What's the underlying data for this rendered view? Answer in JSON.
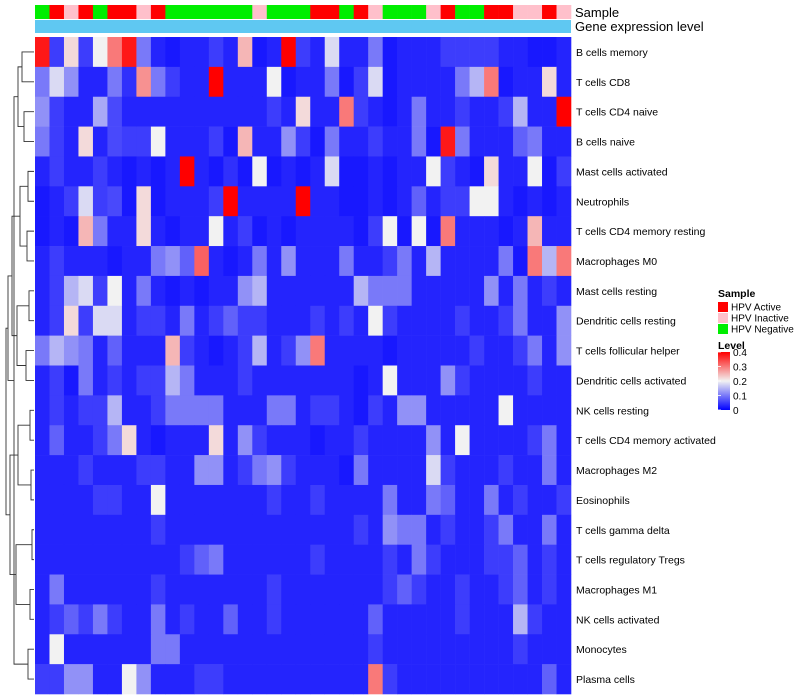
{
  "chart_data": {
    "type": "heatmap",
    "annotation_tracks": [
      "Sample",
      "Gene expression level"
    ],
    "rows": [
      "B cells memory",
      "T cells CD8",
      "T cells CD4 naive",
      "B cells naive",
      "Mast cells activated",
      "Neutrophils",
      "T cells CD4 memory resting",
      "Macrophages M0",
      "Mast cells resting",
      "Dendritic cells resting",
      "T cells follicular helper",
      "Dendritic cells activated",
      "NK cells resting",
      "T cells CD4 memory activated",
      "Macrophages M2",
      "Eosinophils",
      "T cells gamma delta",
      "T cells regulatory  Tregs",
      "Macrophages M1",
      "NK cells activated",
      "Monocytes",
      "Plasma cells"
    ],
    "sample_groups": [
      "HPV Negative",
      "HPV Active",
      "HPV Inactive",
      "HPV Active",
      "HPV Negative",
      "HPV Active",
      "HPV Active",
      "HPV Inactive",
      "HPV Active",
      "HPV Negative",
      "HPV Negative",
      "HPV Negative",
      "HPV Negative",
      "HPV Negative",
      "HPV Negative",
      "HPV Inactive",
      "HPV Negative",
      "HPV Negative",
      "HPV Negative",
      "HPV Active",
      "HPV Active",
      "HPV Negative",
      "HPV Active",
      "HPV Inactive",
      "HPV Negative",
      "HPV Negative",
      "HPV Negative",
      "HPV Inactive",
      "HPV Active",
      "HPV Negative",
      "HPV Negative",
      "HPV Active",
      "HPV Active",
      "HPV Inactive",
      "HPV Inactive",
      "HPV Active",
      "HPV Inactive"
    ],
    "values": [
      [
        0.38,
        0.05,
        0.22,
        0.05,
        0.2,
        0.3,
        0.38,
        0.1,
        0.03,
        0.02,
        0.03,
        0.03,
        0.05,
        0.03,
        0.25,
        0.02,
        0.03,
        0.4,
        0.05,
        0.03,
        0.18,
        0.03,
        0.03,
        0.1,
        0.02,
        0.03,
        0.03,
        0.03,
        0.05,
        0.05,
        0.05,
        0.05,
        0.03,
        0.03,
        0.02,
        0.02,
        0.03
      ],
      [
        0.1,
        0.18,
        0.12,
        0.03,
        0.03,
        0.1,
        0.04,
        0.28,
        0.1,
        0.05,
        0.03,
        0.03,
        0.4,
        0.03,
        0.03,
        0.03,
        0.2,
        0.02,
        0.03,
        0.03,
        0.1,
        0.02,
        0.05,
        0.18,
        0.02,
        0.03,
        0.03,
        0.03,
        0.03,
        0.1,
        0.15,
        0.3,
        0.02,
        0.03,
        0.03,
        0.22,
        0.03
      ],
      [
        0.12,
        0.05,
        0.03,
        0.03,
        0.14,
        0.06,
        0.03,
        0.03,
        0.03,
        0.03,
        0.03,
        0.03,
        0.03,
        0.03,
        0.03,
        0.03,
        0.05,
        0.03,
        0.22,
        0.03,
        0.03,
        0.3,
        0.05,
        0.03,
        0.02,
        0.03,
        0.1,
        0.03,
        0.03,
        0.05,
        0.03,
        0.03,
        0.05,
        0.15,
        0.03,
        0.03,
        0.4
      ],
      [
        0.1,
        0.05,
        0.03,
        0.22,
        0.03,
        0.06,
        0.05,
        0.05,
        0.2,
        0.03,
        0.03,
        0.03,
        0.05,
        0.02,
        0.25,
        0.03,
        0.03,
        0.12,
        0.05,
        0.02,
        0.1,
        0.03,
        0.03,
        0.05,
        0.03,
        0.03,
        0.1,
        0.02,
        0.38,
        0.1,
        0.03,
        0.03,
        0.03,
        0.08,
        0.1,
        0.03,
        0.03
      ],
      [
        0.03,
        0.05,
        0.03,
        0.03,
        0.05,
        0.03,
        0.02,
        0.03,
        0.02,
        0.03,
        0.4,
        0.03,
        0.02,
        0.04,
        0.02,
        0.2,
        0.02,
        0.03,
        0.02,
        0.03,
        0.18,
        0.02,
        0.02,
        0.03,
        0.02,
        0.03,
        0.03,
        0.2,
        0.05,
        0.03,
        0.02,
        0.22,
        0.03,
        0.03,
        0.2,
        0.02,
        0.05
      ],
      [
        0.02,
        0.03,
        0.05,
        0.18,
        0.05,
        0.06,
        0.02,
        0.22,
        0.02,
        0.03,
        0.03,
        0.03,
        0.05,
        0.4,
        0.03,
        0.03,
        0.03,
        0.03,
        0.4,
        0.03,
        0.03,
        0.02,
        0.02,
        0.03,
        0.02,
        0.03,
        0.08,
        0.03,
        0.05,
        0.05,
        0.2,
        0.2,
        0.03,
        0.02,
        0.03,
        0.02,
        0.03
      ],
      [
        0.02,
        0.03,
        0.02,
        0.25,
        0.1,
        0.03,
        0.03,
        0.22,
        0.03,
        0.02,
        0.03,
        0.03,
        0.2,
        0.03,
        0.05,
        0.02,
        0.03,
        0.02,
        0.03,
        0.03,
        0.03,
        0.03,
        0.02,
        0.05,
        0.2,
        0.02,
        0.2,
        0.02,
        0.3,
        0.03,
        0.03,
        0.03,
        0.02,
        0.03,
        0.25,
        0.03,
        0.03
      ],
      [
        0.03,
        0.05,
        0.03,
        0.03,
        0.03,
        0.02,
        0.03,
        0.03,
        0.1,
        0.12,
        0.08,
        0.32,
        0.03,
        0.02,
        0.03,
        0.1,
        0.03,
        0.12,
        0.03,
        0.03,
        0.03,
        0.1,
        0.03,
        0.03,
        0.05,
        0.1,
        0.03,
        0.15,
        0.03,
        0.03,
        0.03,
        0.03,
        0.1,
        0.02,
        0.3,
        0.15,
        0.3
      ],
      [
        0.03,
        0.05,
        0.15,
        0.18,
        0.05,
        0.2,
        0.03,
        0.1,
        0.03,
        0.02,
        0.03,
        0.02,
        0.03,
        0.03,
        0.12,
        0.15,
        0.03,
        0.03,
        0.03,
        0.03,
        0.03,
        0.03,
        0.15,
        0.1,
        0.1,
        0.1,
        0.03,
        0.03,
        0.03,
        0.03,
        0.03,
        0.12,
        0.03,
        0.1,
        0.03,
        0.05,
        0.03
      ],
      [
        0.03,
        0.05,
        0.22,
        0.05,
        0.18,
        0.18,
        0.03,
        0.05,
        0.05,
        0.03,
        0.1,
        0.03,
        0.05,
        0.08,
        0.05,
        0.05,
        0.03,
        0.03,
        0.03,
        0.05,
        0.03,
        0.05,
        0.03,
        0.2,
        0.05,
        0.03,
        0.03,
        0.03,
        0.03,
        0.05,
        0.03,
        0.03,
        0.05,
        0.1,
        0.03,
        0.03,
        0.12
      ],
      [
        0.1,
        0.15,
        0.12,
        0.1,
        0.03,
        0.08,
        0.03,
        0.03,
        0.03,
        0.25,
        0.05,
        0.03,
        0.02,
        0.03,
        0.05,
        0.15,
        0.03,
        0.05,
        0.12,
        0.3,
        0.03,
        0.03,
        0.03,
        0.03,
        0.02,
        0.03,
        0.03,
        0.03,
        0.03,
        0.03,
        0.05,
        0.03,
        0.03,
        0.05,
        0.1,
        0.03,
        0.12
      ],
      [
        0.03,
        0.05,
        0.02,
        0.1,
        0.03,
        0.05,
        0.03,
        0.05,
        0.05,
        0.15,
        0.1,
        0.03,
        0.03,
        0.03,
        0.05,
        0.03,
        0.03,
        0.03,
        0.03,
        0.03,
        0.03,
        0.03,
        0.02,
        0.03,
        0.2,
        0.03,
        0.03,
        0.03,
        0.12,
        0.05,
        0.03,
        0.03,
        0.03,
        0.03,
        0.05,
        0.03,
        0.03
      ],
      [
        0.03,
        0.05,
        0.03,
        0.05,
        0.05,
        0.15,
        0.03,
        0.03,
        0.05,
        0.1,
        0.1,
        0.1,
        0.1,
        0.03,
        0.03,
        0.03,
        0.1,
        0.1,
        0.03,
        0.05,
        0.05,
        0.03,
        0.02,
        0.05,
        0.03,
        0.12,
        0.12,
        0.03,
        0.03,
        0.03,
        0.03,
        0.03,
        0.2,
        0.03,
        0.03,
        0.03,
        0.03
      ],
      [
        0.03,
        0.08,
        0.03,
        0.03,
        0.05,
        0.1,
        0.22,
        0.03,
        0.02,
        0.03,
        0.03,
        0.03,
        0.22,
        0.03,
        0.12,
        0.05,
        0.03,
        0.03,
        0.03,
        0.02,
        0.03,
        0.03,
        0.05,
        0.03,
        0.03,
        0.03,
        0.03,
        0.12,
        0.03,
        0.2,
        0.03,
        0.03,
        0.03,
        0.03,
        0.05,
        0.1,
        0.03
      ],
      [
        0.03,
        0.03,
        0.03,
        0.05,
        0.03,
        0.03,
        0.03,
        0.05,
        0.05,
        0.03,
        0.03,
        0.12,
        0.12,
        0.03,
        0.05,
        0.1,
        0.12,
        0.05,
        0.03,
        0.03,
        0.03,
        0.02,
        0.1,
        0.03,
        0.03,
        0.03,
        0.03,
        0.18,
        0.05,
        0.03,
        0.03,
        0.03,
        0.05,
        0.03,
        0.03,
        0.1,
        0.03
      ],
      [
        0.03,
        0.03,
        0.03,
        0.03,
        0.05,
        0.05,
        0.03,
        0.03,
        0.2,
        0.03,
        0.03,
        0.03,
        0.03,
        0.03,
        0.03,
        0.03,
        0.05,
        0.03,
        0.03,
        0.05,
        0.03,
        0.03,
        0.03,
        0.03,
        0.1,
        0.03,
        0.03,
        0.1,
        0.08,
        0.03,
        0.03,
        0.1,
        0.03,
        0.05,
        0.03,
        0.03,
        0.05
      ],
      [
        0.03,
        0.03,
        0.03,
        0.03,
        0.03,
        0.03,
        0.03,
        0.03,
        0.05,
        0.03,
        0.03,
        0.03,
        0.03,
        0.03,
        0.03,
        0.03,
        0.03,
        0.03,
        0.03,
        0.03,
        0.03,
        0.03,
        0.05,
        0.03,
        0.12,
        0.1,
        0.1,
        0.03,
        0.05,
        0.03,
        0.03,
        0.05,
        0.1,
        0.03,
        0.03,
        0.1,
        0.03
      ],
      [
        0.03,
        0.03,
        0.03,
        0.03,
        0.03,
        0.03,
        0.03,
        0.03,
        0.03,
        0.03,
        0.05,
        0.08,
        0.1,
        0.03,
        0.03,
        0.03,
        0.03,
        0.03,
        0.03,
        0.05,
        0.03,
        0.03,
        0.03,
        0.03,
        0.05,
        0.03,
        0.1,
        0.05,
        0.03,
        0.03,
        0.03,
        0.05,
        0.05,
        0.08,
        0.03,
        0.05,
        0.03
      ],
      [
        0.03,
        0.1,
        0.03,
        0.03,
        0.03,
        0.03,
        0.03,
        0.03,
        0.05,
        0.03,
        0.03,
        0.03,
        0.03,
        0.03,
        0.03,
        0.03,
        0.05,
        0.03,
        0.03,
        0.03,
        0.03,
        0.03,
        0.03,
        0.03,
        0.05,
        0.08,
        0.05,
        0.03,
        0.03,
        0.05,
        0.03,
        0.03,
        0.05,
        0.08,
        0.03,
        0.05,
        0.03
      ],
      [
        0.03,
        0.05,
        0.08,
        0.05,
        0.1,
        0.05,
        0.03,
        0.03,
        0.1,
        0.03,
        0.05,
        0.03,
        0.03,
        0.08,
        0.03,
        0.03,
        0.05,
        0.03,
        0.03,
        0.03,
        0.03,
        0.03,
        0.03,
        0.08,
        0.03,
        0.03,
        0.03,
        0.03,
        0.03,
        0.05,
        0.03,
        0.03,
        0.03,
        0.15,
        0.05,
        0.03,
        0.03
      ],
      [
        0.03,
        0.2,
        0.03,
        0.03,
        0.03,
        0.03,
        0.03,
        0.03,
        0.1,
        0.1,
        0.03,
        0.03,
        0.03,
        0.03,
        0.03,
        0.03,
        0.03,
        0.03,
        0.03,
        0.03,
        0.03,
        0.03,
        0.03,
        0.05,
        0.03,
        0.03,
        0.03,
        0.03,
        0.03,
        0.03,
        0.03,
        0.03,
        0.03,
        0.05,
        0.03,
        0.03,
        0.03
      ],
      [
        0.05,
        0.05,
        0.12,
        0.12,
        0.03,
        0.03,
        0.2,
        0.12,
        0.03,
        0.03,
        0.03,
        0.05,
        0.05,
        0.03,
        0.03,
        0.03,
        0.03,
        0.03,
        0.03,
        0.03,
        0.03,
        0.03,
        0.03,
        0.3,
        0.05,
        0.03,
        0.03,
        0.03,
        0.03,
        0.03,
        0.03,
        0.03,
        0.03,
        0.03,
        0.03,
        0.08,
        0.03
      ]
    ],
    "legend": {
      "sample_title": "Sample",
      "sample_items": [
        {
          "label": "HPV Active",
          "color": "#ff0000"
        },
        {
          "label": "HPV Inactive",
          "color": "#ffc0cb"
        },
        {
          "label": "HPV Negative",
          "color": "#00ee00"
        }
      ],
      "level_title": "Level",
      "level_ticks": [
        "0.4",
        "0.3",
        "0.2",
        "0.1",
        "0"
      ],
      "level_tick_values": [
        0.4,
        0.3,
        0.2,
        0.1,
        0
      ],
      "range": [
        0,
        0.4
      ],
      "colors": {
        "low": "#0000ff",
        "mid": "#f2f2f2",
        "high": "#ff0000"
      },
      "track_color": "#5fc8f2"
    }
  }
}
